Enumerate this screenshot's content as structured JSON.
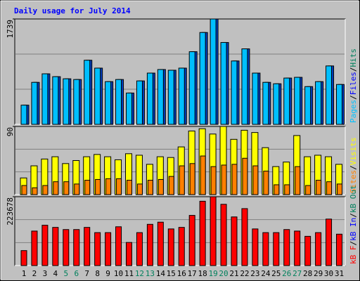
{
  "title": "Daily usage for July 2014",
  "days": [
    "1",
    "2",
    "3",
    "4",
    "5",
    "6",
    "7",
    "8",
    "9",
    "10",
    "11",
    "12",
    "13",
    "14",
    "15",
    "16",
    "17",
    "18",
    "19",
    "20",
    "21",
    "22",
    "23",
    "24",
    "25",
    "26",
    "27",
    "28",
    "29",
    "30",
    "31"
  ],
  "day_colors": [
    "#000000",
    "#000000",
    "#000000",
    "#000000",
    "#00805c",
    "#00805c",
    "#000000",
    "#000000",
    "#000000",
    "#000000",
    "#000000",
    "#00805c",
    "#00805c",
    "#000000",
    "#000000",
    "#000000",
    "#000000",
    "#000000",
    "#00805c",
    "#00805c",
    "#000000",
    "#000000",
    "#000000",
    "#000000",
    "#000000",
    "#00805c",
    "#00805c",
    "#000000",
    "#000000",
    "#000000",
    "#000000"
  ],
  "chart_data": [
    {
      "type": "bar",
      "ylim": [
        0,
        1739
      ],
      "yticks": [
        1739
      ],
      "label_parts": [
        {
          "text": "Pages",
          "color": "#00c0ff"
        },
        {
          "text": "/",
          "color": "#000000"
        },
        {
          "text": "Files",
          "color": "#0000ff"
        },
        {
          "text": "/",
          "color": "#000000"
        },
        {
          "text": "Hits",
          "color": "#00805c"
        }
      ],
      "series": [
        {
          "color": "#0040c0",
          "values": [
            317,
            693,
            834,
            787,
            752,
            740,
            1058,
            928,
            705,
            740,
            517,
            717,
            846,
            905,
            893,
            928,
            1199,
            1516,
            1739,
            1351,
            1046,
            1246,
            846,
            693,
            670,
            764,
            776,
            623,
            705,
            964,
            658
          ]
        },
        {
          "color": "#00bfff",
          "values": [
            317,
            693,
            834,
            787,
            752,
            740,
            1058,
            928,
            705,
            740,
            517,
            717,
            846,
            905,
            893,
            928,
            1199,
            1516,
            1739,
            1351,
            1046,
            1246,
            846,
            693,
            670,
            764,
            776,
            623,
            705,
            964,
            658
          ]
        }
      ]
    },
    {
      "type": "bar",
      "ylim": [
        0,
        90
      ],
      "yticks": [
        90
      ],
      "label_parts": [
        {
          "text": "Sites",
          "color": "#ff8000"
        },
        {
          "text": "/",
          "color": "#000000"
        },
        {
          "text": "Visits",
          "color": "#ffff00"
        }
      ],
      "series": [
        {
          "color": "#ffff00",
          "values": [
            22,
            38,
            47,
            50,
            41,
            45,
            50,
            53,
            50,
            46,
            54,
            52,
            40,
            50,
            49,
            63,
            84,
            87,
            80,
            90,
            73,
            85,
            82,
            62,
            37,
            43,
            78,
            50,
            52,
            50,
            40
          ]
        },
        {
          "color": "#ff8000",
          "values": [
            12,
            9,
            12,
            17,
            17,
            14,
            19,
            20,
            21,
            21,
            19,
            14,
            19,
            20,
            24,
            38,
            41,
            51,
            37,
            39,
            40,
            48,
            38,
            31,
            13,
            13,
            37,
            12,
            19,
            17,
            14
          ]
        }
      ]
    },
    {
      "type": "bar",
      "ylim": [
        0,
        223678
      ],
      "yticks": [
        223678
      ],
      "label_parts": [
        {
          "text": "kB F",
          "color": "#ff0000"
        },
        {
          "text": "/",
          "color": "#000000"
        },
        {
          "text": "kB In",
          "color": "#0000ff"
        },
        {
          "text": "/",
          "color": "#000000"
        },
        {
          "text": "kB Out",
          "color": "#00805c"
        }
      ],
      "series": [
        {
          "color": "#ff0000",
          "values": [
            48600,
            112000,
            131000,
            124000,
            117000,
            117000,
            124000,
            107000,
            107000,
            126000,
            75000,
            107000,
            134000,
            141000,
            119000,
            124000,
            163000,
            209000,
            223678,
            199000,
            158000,
            185000,
            119000,
            107000,
            107000,
            117000,
            112000,
            95000,
            107000,
            151000,
            102000
          ]
        }
      ]
    }
  ]
}
